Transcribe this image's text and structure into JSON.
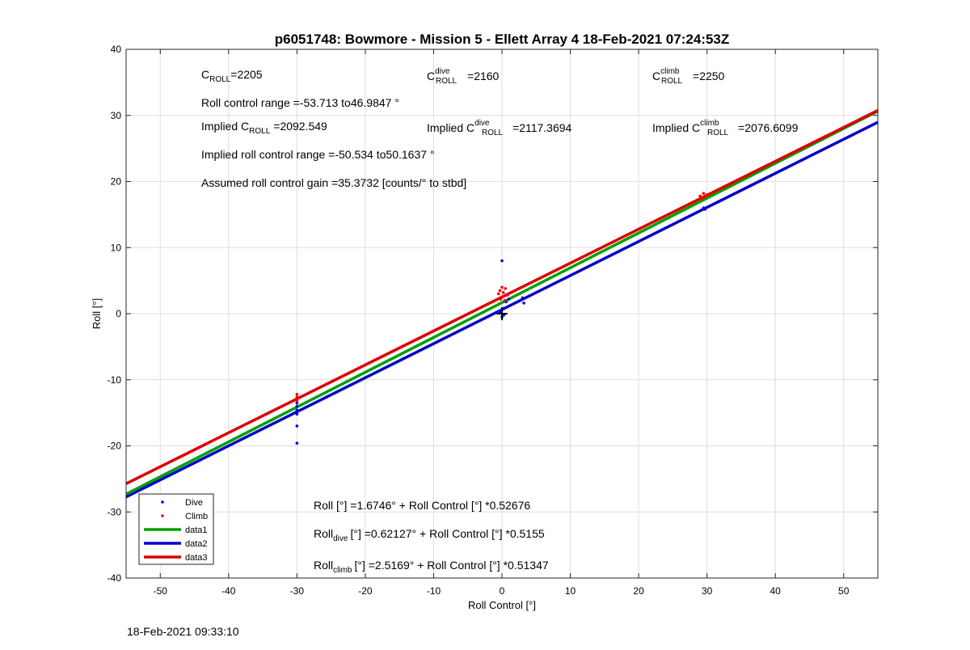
{
  "chart_data": {
    "type": "scatter",
    "title": "p6051748: Bowmore - Mission 5 - Ellett Array 4 18-Feb-2021 07:24:53Z",
    "xlabel": "Roll Control [°]",
    "ylabel": "Roll [°]",
    "xlim": [
      -55,
      55
    ],
    "ylim": [
      -40,
      40
    ],
    "xticks": [
      -50,
      -40,
      -30,
      -20,
      -10,
      0,
      10,
      20,
      30,
      40,
      50
    ],
    "yticks": [
      -40,
      -30,
      -20,
      -10,
      0,
      10,
      20,
      30,
      40
    ],
    "grid": true,
    "legend_position": "bottom-left",
    "series": [
      {
        "name": "Dive",
        "kind": "points",
        "color": "#0000ff",
        "points": [
          [
            -30,
            -19.6
          ],
          [
            -30,
            -17
          ],
          [
            -30,
            -15.2
          ],
          [
            -30,
            -14.6
          ],
          [
            -30,
            -14
          ],
          [
            -30,
            -13.5
          ],
          [
            0,
            8
          ],
          [
            0.6,
            1.8
          ],
          [
            1,
            2.2
          ],
          [
            3,
            2.4
          ],
          [
            3.2,
            1.6
          ],
          [
            -0.3,
            0.2
          ],
          [
            0,
            -0.5
          ],
          [
            0.2,
            0.8
          ],
          [
            -0.4,
            0.4
          ],
          [
            0.3,
            -0.2
          ],
          [
            29.5,
            16
          ],
          [
            29.7,
            15.8
          ]
        ]
      },
      {
        "name": "Climb",
        "kind": "points",
        "color": "#ff0000",
        "points": [
          [
            -30,
            -13.2
          ],
          [
            -30,
            -12.6
          ],
          [
            -30,
            -12.2
          ],
          [
            0,
            4
          ],
          [
            0.5,
            3.8
          ],
          [
            -0.3,
            3.5
          ],
          [
            0.2,
            3.2
          ],
          [
            -0.5,
            3
          ],
          [
            0.8,
            2.8
          ],
          [
            0,
            2.5
          ],
          [
            -0.2,
            2.2
          ],
          [
            0.4,
            2
          ],
          [
            29,
            17.8
          ],
          [
            29.5,
            18.2
          ],
          [
            30,
            18
          ],
          [
            29.3,
            17.4
          ]
        ]
      },
      {
        "name": "data1",
        "kind": "line",
        "color": "#00a000",
        "x": [
          -55,
          55
        ],
        "y": [
          -27.3,
          30.65
        ]
      },
      {
        "name": "data2",
        "kind": "line",
        "color": "#0000cc",
        "x": [
          -55,
          55
        ],
        "y": [
          -27.73,
          28.97
        ]
      },
      {
        "name": "data3",
        "kind": "line",
        "color": "#dd0000",
        "x": [
          -55,
          55
        ],
        "y": [
          -25.72,
          30.76
        ]
      }
    ],
    "annotations": {
      "c_roll": "2205",
      "c_roll_dive": "2160",
      "c_roll_climb": "2250",
      "roll_range": "Roll control range =-53.713 to46.9847 °",
      "implied_c_roll": "2092.549",
      "implied_c_roll_dive": "2117.3694",
      "implied_c_roll_climb": "2076.6099",
      "implied_range": "Implied roll control range =-50.534 to50.1637 °",
      "gain": "Assumed roll control gain =35.3732 [counts/° to stbd]",
      "eq_all": "Roll [°] =1.6746° + Roll Control [°] *0.52676",
      "eq_dive": "[°] =0.62127° + Roll Control [°] *0.5155",
      "eq_climb": "[°] =2.5169° + Roll Control [°] *0.51347"
    }
  },
  "labels": {
    "c": "C",
    "roll_sub": "ROLL",
    "dive_sup": "dive",
    "climb_sup": "climb",
    "eq_prefix": "=",
    "implied_prefix": "Implied C",
    "roll_word": "Roll",
    "dive_sub": "dive",
    "climb_sub": "climb"
  },
  "footer_timestamp": "18-Feb-2021 09:33:10"
}
